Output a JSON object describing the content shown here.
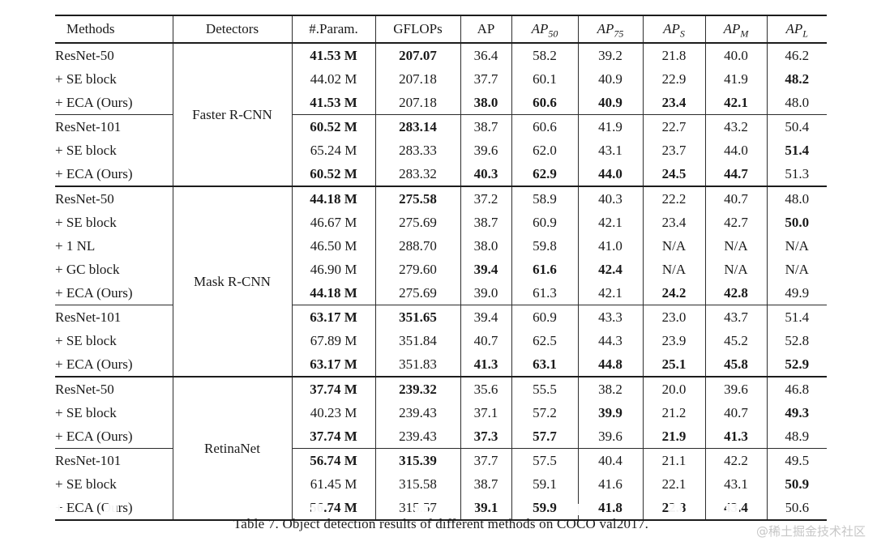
{
  "caption": "Table 7. Object detection results of different methods on COCO val2017.",
  "watermark": "@稀土掘金技术社区",
  "table": {
    "headers": [
      {
        "label": "Methods"
      },
      {
        "label": "Detectors"
      },
      {
        "label": "#.Param."
      },
      {
        "label": "GFLOPs"
      },
      {
        "label": "AP"
      },
      {
        "label": "AP",
        "sub": "50",
        "italic": true
      },
      {
        "label": "AP",
        "sub": "75",
        "italic": true
      },
      {
        "label": "AP",
        "sub": "S",
        "italic": true
      },
      {
        "label": "AP",
        "sub": "M",
        "italic": true
      },
      {
        "label": "AP",
        "sub": "L",
        "italic": true
      }
    ],
    "sections": [
      {
        "detector": "Faster R-CNN",
        "rows": [
          {
            "method": "ResNet-50",
            "cells": [
              {
                "v": "41.53 M",
                "b": true
              },
              {
                "v": "207.07",
                "b": true
              },
              {
                "v": "36.4"
              },
              {
                "v": "58.2"
              },
              {
                "v": "39.2"
              },
              {
                "v": "21.8"
              },
              {
                "v": "40.0"
              },
              {
                "v": "46.2"
              }
            ]
          },
          {
            "method": "+ SE block",
            "cells": [
              {
                "v": "44.02 M"
              },
              {
                "v": "207.18"
              },
              {
                "v": "37.7"
              },
              {
                "v": "60.1"
              },
              {
                "v": "40.9"
              },
              {
                "v": "22.9"
              },
              {
                "v": "41.9"
              },
              {
                "v": "48.2",
                "b": true
              }
            ]
          },
          {
            "method": "+ ECA (Ours)",
            "cells": [
              {
                "v": "41.53 M",
                "b": true
              },
              {
                "v": "207.18"
              },
              {
                "v": "38.0",
                "b": true
              },
              {
                "v": "60.6",
                "b": true
              },
              {
                "v": "40.9",
                "b": true
              },
              {
                "v": "23.4",
                "b": true
              },
              {
                "v": "42.1",
                "b": true
              },
              {
                "v": "48.0"
              }
            ]
          },
          {
            "method": "ResNet-101",
            "divider": true,
            "cells": [
              {
                "v": "60.52 M",
                "b": true
              },
              {
                "v": "283.14",
                "b": true
              },
              {
                "v": "38.7"
              },
              {
                "v": "60.6"
              },
              {
                "v": "41.9"
              },
              {
                "v": "22.7"
              },
              {
                "v": "43.2"
              },
              {
                "v": "50.4"
              }
            ]
          },
          {
            "method": "+ SE block",
            "cells": [
              {
                "v": "65.24 M"
              },
              {
                "v": "283.33"
              },
              {
                "v": "39.6"
              },
              {
                "v": "62.0"
              },
              {
                "v": "43.1"
              },
              {
                "v": "23.7"
              },
              {
                "v": "44.0"
              },
              {
                "v": "51.4",
                "b": true
              }
            ]
          },
          {
            "method": "+ ECA (Ours)",
            "cells": [
              {
                "v": "60.52 M",
                "b": true
              },
              {
                "v": "283.32"
              },
              {
                "v": "40.3",
                "b": true
              },
              {
                "v": "62.9",
                "b": true
              },
              {
                "v": "44.0",
                "b": true
              },
              {
                "v": "24.5",
                "b": true
              },
              {
                "v": "44.7",
                "b": true
              },
              {
                "v": "51.3"
              }
            ]
          }
        ]
      },
      {
        "detector": "Mask R-CNN",
        "rows": [
          {
            "method": "ResNet-50",
            "cells": [
              {
                "v": "44.18 M",
                "b": true
              },
              {
                "v": "275.58",
                "b": true
              },
              {
                "v": "37.2"
              },
              {
                "v": "58.9"
              },
              {
                "v": "40.3"
              },
              {
                "v": "22.2"
              },
              {
                "v": "40.7"
              },
              {
                "v": "48.0"
              }
            ]
          },
          {
            "method": "+ SE block",
            "cells": [
              {
                "v": "46.67 M"
              },
              {
                "v": "275.69"
              },
              {
                "v": "38.7"
              },
              {
                "v": "60.9"
              },
              {
                "v": "42.1"
              },
              {
                "v": "23.4"
              },
              {
                "v": "42.7"
              },
              {
                "v": "50.0",
                "b": true
              }
            ]
          },
          {
            "method": "+ 1 NL",
            "cells": [
              {
                "v": "46.50 M"
              },
              {
                "v": "288.70"
              },
              {
                "v": "38.0"
              },
              {
                "v": "59.8"
              },
              {
                "v": "41.0"
              },
              {
                "v": "N/A"
              },
              {
                "v": "N/A"
              },
              {
                "v": "N/A"
              }
            ]
          },
          {
            "method": "+ GC block",
            "cells": [
              {
                "v": "46.90 M"
              },
              {
                "v": "279.60"
              },
              {
                "v": "39.4",
                "b": true
              },
              {
                "v": "61.6",
                "b": true
              },
              {
                "v": "42.4",
                "b": true
              },
              {
                "v": "N/A"
              },
              {
                "v": "N/A"
              },
              {
                "v": "N/A"
              }
            ]
          },
          {
            "method": "+ ECA (Ours)",
            "cells": [
              {
                "v": "44.18 M",
                "b": true
              },
              {
                "v": "275.69"
              },
              {
                "v": "39.0"
              },
              {
                "v": "61.3"
              },
              {
                "v": "42.1"
              },
              {
                "v": "24.2",
                "b": true
              },
              {
                "v": "42.8",
                "b": true
              },
              {
                "v": "49.9"
              }
            ]
          },
          {
            "method": "ResNet-101",
            "divider": true,
            "cells": [
              {
                "v": "63.17 M",
                "b": true
              },
              {
                "v": "351.65",
                "b": true
              },
              {
                "v": "39.4"
              },
              {
                "v": "60.9"
              },
              {
                "v": "43.3"
              },
              {
                "v": "23.0"
              },
              {
                "v": "43.7"
              },
              {
                "v": "51.4"
              }
            ]
          },
          {
            "method": "+ SE block",
            "cells": [
              {
                "v": "67.89 M"
              },
              {
                "v": "351.84"
              },
              {
                "v": "40.7"
              },
              {
                "v": "62.5"
              },
              {
                "v": "44.3"
              },
              {
                "v": "23.9"
              },
              {
                "v": "45.2"
              },
              {
                "v": "52.8"
              }
            ]
          },
          {
            "method": "+ ECA (Ours)",
            "cells": [
              {
                "v": "63.17 M",
                "b": true
              },
              {
                "v": "351.83"
              },
              {
                "v": "41.3",
                "b": true
              },
              {
                "v": "63.1",
                "b": true
              },
              {
                "v": "44.8",
                "b": true
              },
              {
                "v": "25.1",
                "b": true
              },
              {
                "v": "45.8",
                "b": true
              },
              {
                "v": "52.9",
                "b": true
              }
            ]
          }
        ]
      },
      {
        "detector": "RetinaNet",
        "rows": [
          {
            "method": "ResNet-50",
            "cells": [
              {
                "v": "37.74 M",
                "b": true
              },
              {
                "v": "239.32",
                "b": true
              },
              {
                "v": "35.6"
              },
              {
                "v": "55.5"
              },
              {
                "v": "38.2"
              },
              {
                "v": "20.0"
              },
              {
                "v": "39.6"
              },
              {
                "v": "46.8"
              }
            ]
          },
          {
            "method": "+ SE block",
            "cells": [
              {
                "v": "40.23 M"
              },
              {
                "v": "239.43"
              },
              {
                "v": "37.1"
              },
              {
                "v": "57.2"
              },
              {
                "v": "39.9",
                "b": true
              },
              {
                "v": "21.2"
              },
              {
                "v": "40.7"
              },
              {
                "v": "49.3",
                "b": true
              }
            ]
          },
          {
            "method": "+ ECA (Ours)",
            "cells": [
              {
                "v": "37.74 M",
                "b": true
              },
              {
                "v": "239.43"
              },
              {
                "v": "37.3",
                "b": true
              },
              {
                "v": "57.7",
                "b": true
              },
              {
                "v": "39.6"
              },
              {
                "v": "21.9",
                "b": true
              },
              {
                "v": "41.3",
                "b": true
              },
              {
                "v": "48.9"
              }
            ]
          },
          {
            "method": "ResNet-101",
            "divider": true,
            "cells": [
              {
                "v": "56.74 M",
                "b": true
              },
              {
                "v": "315.39",
                "b": true
              },
              {
                "v": "37.7"
              },
              {
                "v": "57.5"
              },
              {
                "v": "40.4"
              },
              {
                "v": "21.1"
              },
              {
                "v": "42.2"
              },
              {
                "v": "49.5"
              }
            ]
          },
          {
            "method": "+ SE block",
            "cells": [
              {
                "v": "61.45 M"
              },
              {
                "v": "315.58"
              },
              {
                "v": "38.7"
              },
              {
                "v": "59.1"
              },
              {
                "v": "41.6"
              },
              {
                "v": "22.1"
              },
              {
                "v": "43.1"
              },
              {
                "v": "50.9",
                "b": true
              }
            ]
          },
          {
            "method": "+ ECA (Ours)",
            "cells": [
              {
                "v": "56.74 M",
                "b": true
              },
              {
                "v": "315.57"
              },
              {
                "v": "39.1",
                "b": true
              },
              {
                "v": "59.9",
                "b": true
              },
              {
                "v": "41.8",
                "b": true
              },
              {
                "v": "22.8",
                "b": true
              },
              {
                "v": "43.4",
                "b": true
              },
              {
                "v": "50.6"
              }
            ]
          }
        ]
      }
    ]
  }
}
